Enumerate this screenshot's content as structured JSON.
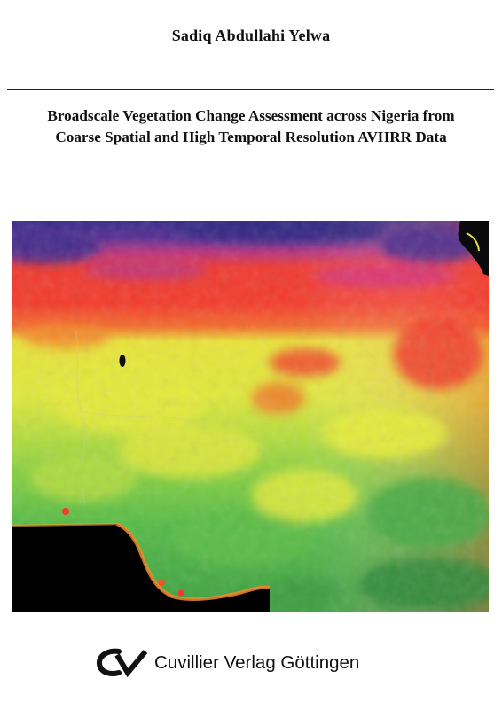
{
  "book": {
    "author": "Sadiq Abdullahi Yelwa",
    "title_lines": [
      "Broadscale Vegetation Change Assessment across Nigeria from",
      "Coarse Spatial and High Temporal Resolution AVHRR Data"
    ]
  },
  "publisher": {
    "name": "Cuvillier Verlag Göttingen",
    "logo_icon": "cuvillier-cv-logo-icon"
  },
  "cover_image": {
    "subject": "vegetation-index-map-icon",
    "colors": {
      "desert_purple": "#3b2c8e",
      "magenta": "#c2337a",
      "red": "#f23a2e",
      "orange": "#f5a32a",
      "yellow": "#ecf03a",
      "light_green": "#9cd83e",
      "green": "#4fb847",
      "dark_green": "#2f8a3a",
      "water_black": "#000000"
    }
  }
}
